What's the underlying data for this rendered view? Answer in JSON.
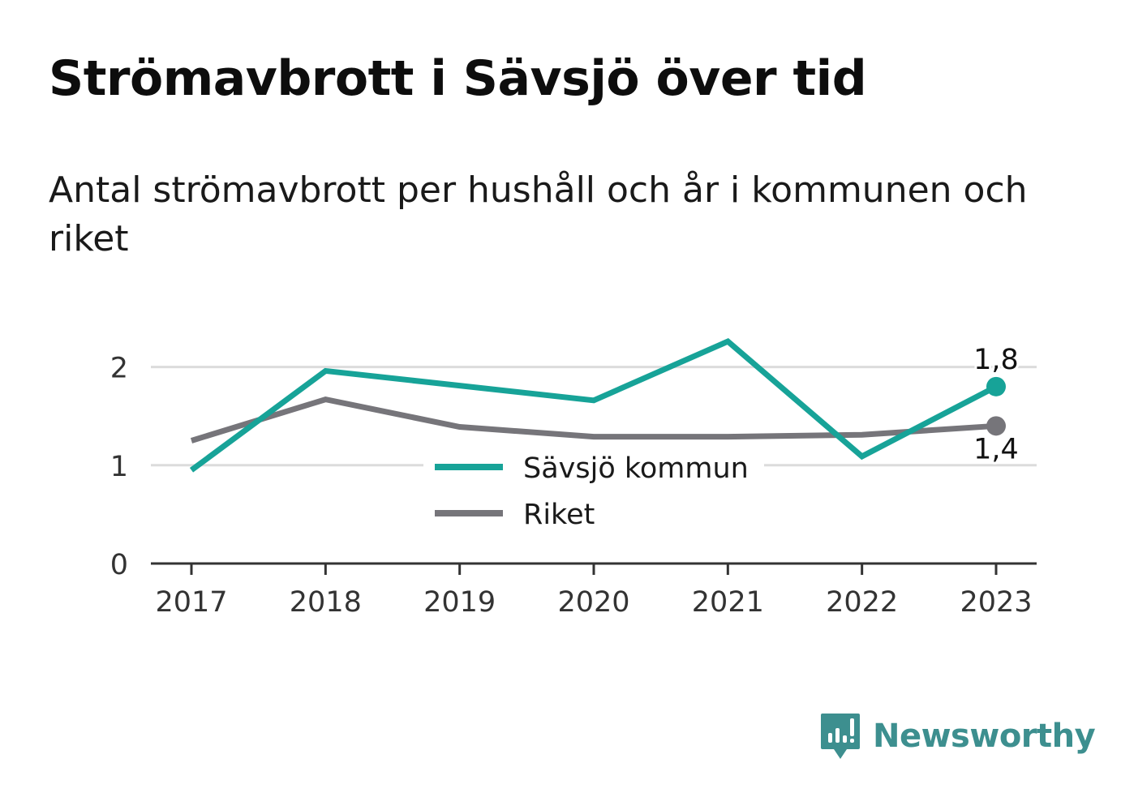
{
  "header": {
    "title": "Strömavbrott i Sävsjö över tid",
    "subtitle": "Antal strömavbrott per hushåll och år i kommunen och riket"
  },
  "brand": {
    "name": "Newsworthy",
    "icon": "newsworthy-logo-icon",
    "color": "#3d8f8f"
  },
  "chart_data": {
    "type": "line",
    "x": [
      "2017",
      "2018",
      "2019",
      "2020",
      "2021",
      "2022",
      "2023"
    ],
    "ylim": [
      0,
      2.5
    ],
    "yticks": [
      "0",
      "1",
      "2"
    ],
    "grid": true,
    "legend_position": "center",
    "series": [
      {
        "name": "Sävsjö kommun",
        "color": "#17a398",
        "values": [
          0.95,
          1.96,
          1.81,
          1.66,
          2.26,
          1.09,
          1.8
        ],
        "end_label": "1,8"
      },
      {
        "name": "Riket",
        "color": "#76757a",
        "values": [
          1.25,
          1.67,
          1.39,
          1.29,
          1.29,
          1.31,
          1.4
        ],
        "end_label": "1,4"
      }
    ]
  }
}
